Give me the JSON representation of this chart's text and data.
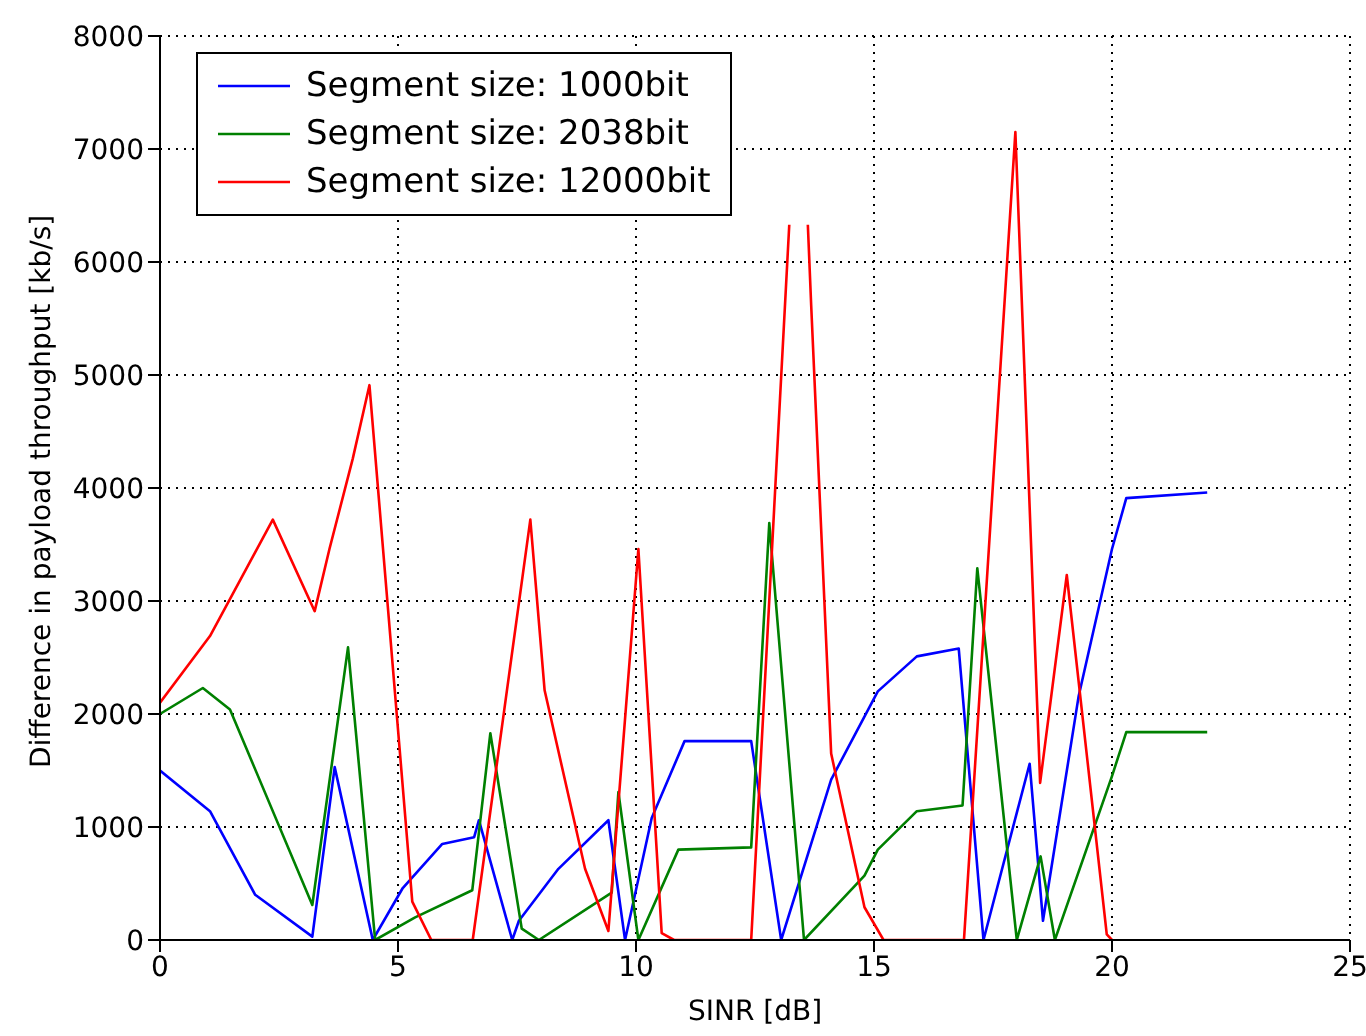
{
  "chart_data": {
    "type": "line",
    "xlabel": "SINR [dB]",
    "ylabel": "Difference in payload throughput [kb/s]",
    "xlim": [
      0,
      25
    ],
    "xticks": [
      0,
      5,
      10,
      15,
      20,
      25
    ],
    "ylim": [
      0,
      8000
    ],
    "yticks": [
      0,
      1000,
      2000,
      3000,
      4000,
      5000,
      6000,
      7000,
      8000
    ],
    "grid": true,
    "legend": "top left",
    "marker": "none",
    "line_style": "solid",
    "series": [
      {
        "name": "Segment size: 1000bit",
        "color": "#0000ff",
        "x": [
          0,
          1.05,
          2.0,
          3.2,
          3.67,
          4.47,
          5.1,
          5.93,
          6.6,
          6.7,
          7.4,
          7.54,
          8.37,
          9.42,
          9.77,
          10.33,
          11.02,
          12.42,
          13.05,
          14.1,
          15.08,
          15.9,
          16.78,
          17.3,
          18.27,
          18.55,
          19.3,
          20.0,
          20.3,
          22.0
        ],
        "values": [
          1500,
          1140,
          400,
          30,
          1530,
          0,
          460,
          850,
          910,
          1060,
          0,
          170,
          630,
          1060,
          0,
          1080,
          1760,
          1760,
          0,
          1420,
          2200,
          2510,
          2580,
          0,
          1560,
          170,
          2160,
          3460,
          3910,
          3960
        ]
      },
      {
        "name": "Segment size: 2038bit",
        "color": "#008000",
        "x": [
          0,
          0.9,
          1.47,
          3.2,
          3.95,
          4.52,
          5.36,
          6.56,
          6.94,
          7.6,
          7.96,
          9.49,
          9.63,
          10.05,
          10.89,
          12.42,
          12.8,
          13.53,
          14.8,
          15.08,
          15.9,
          16.86,
          17.17,
          18.0,
          18.5,
          18.8,
          20.0,
          20.3,
          22.0
        ],
        "values": [
          2000,
          2230,
          2040,
          310,
          2590,
          0,
          200,
          440,
          1830,
          100,
          0,
          420,
          1310,
          0,
          800,
          820,
          3690,
          0,
          570,
          800,
          1140,
          1190,
          3290,
          0,
          740,
          0,
          1450,
          1840,
          1840
        ]
      },
      {
        "name": "Segment size: 12000bit",
        "color": "#ff0000",
        "x": [
          0,
          1.05,
          2.37,
          3.25,
          3.56,
          4.05,
          4.4,
          5.3,
          5.7,
          6.57,
          7.78,
          8.08,
          8.93,
          9.42,
          10.05,
          10.54,
          10.8,
          12.42,
          13.22,
          13.4,
          13.61,
          13.68,
          14.1,
          14.8,
          15.2,
          16.89,
          17.97,
          18.49,
          19.05,
          19.89,
          20.0
        ],
        "values": [
          2100,
          2690,
          3720,
          2910,
          3460,
          4260,
          4910,
          340,
          0,
          0,
          3720,
          2210,
          630,
          80,
          3460,
          60,
          0,
          0,
          6330,
          null,
          6330,
          5620,
          1650,
          290,
          0,
          0,
          7150,
          1390,
          3230,
          50,
          0
        ]
      }
    ]
  }
}
